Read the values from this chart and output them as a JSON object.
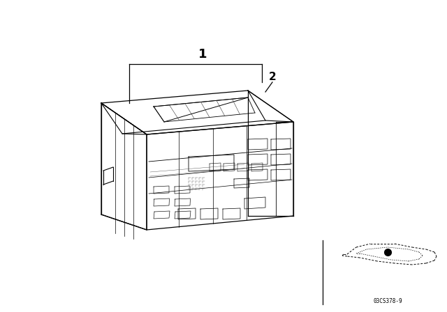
{
  "bg_color": "#ffffff",
  "line_color": "#000000",
  "label1_text": "1",
  "label2_text": "2",
  "part_code": "03CS378-9",
  "fig_w": 6.4,
  "fig_h": 4.48,
  "dpi": 100
}
